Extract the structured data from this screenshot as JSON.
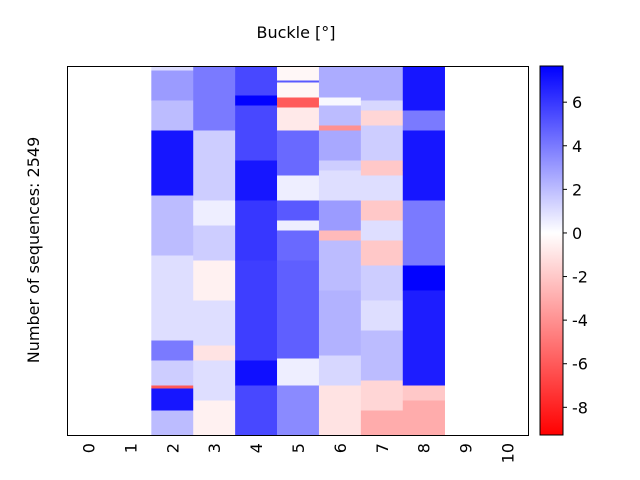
{
  "chart_data": {
    "type": "heatmap",
    "title": "Buckle [°]",
    "ylabel": "Number of sequences: 2549",
    "xlabel": "",
    "x_categories": [
      "0",
      "1",
      "2",
      "3",
      "4",
      "5",
      "6",
      "7",
      "8",
      "9",
      "10"
    ],
    "total_sequences": 2549,
    "colormap": "bwr",
    "colorbar": {
      "range": [
        -9.27,
        7.66
      ],
      "ticks": [
        6,
        4,
        2,
        0,
        -2,
        -4,
        -6,
        -8
      ],
      "tick_labels": [
        "6",
        "4",
        "2",
        "0",
        "-2",
        "-4",
        "-6",
        "-8"
      ],
      "colors": {
        "negative": "#ff0000",
        "zero": "#ffffff",
        "positive": "#0000ff"
      }
    },
    "columns": [
      {
        "x": "0",
        "segments": []
      },
      {
        "x": "1",
        "segments": []
      },
      {
        "x": "2",
        "segments": [
          [
            1,
            4
          ],
          [
            3,
            30
          ],
          [
            2,
            30
          ],
          [
            7,
            65
          ],
          [
            2,
            60
          ],
          [
            1,
            85
          ],
          [
            4,
            20
          ],
          [
            1.5,
            25
          ],
          [
            -6,
            3
          ],
          [
            7,
            22
          ],
          [
            2,
            25
          ]
        ]
      },
      {
        "x": "3",
        "segments": [
          [
            4,
            64
          ],
          [
            1.5,
            70
          ],
          [
            0.5,
            25
          ],
          [
            1.5,
            35
          ],
          [
            -0.5,
            40
          ],
          [
            1,
            45
          ],
          [
            -1,
            15
          ],
          [
            1,
            40
          ],
          [
            -0.5,
            35
          ]
        ]
      },
      {
        "x": "4",
        "segments": [
          [
            5.5,
            29
          ],
          [
            7.6,
            10
          ],
          [
            5.5,
            55
          ],
          [
            7,
            40
          ],
          [
            6,
            60
          ],
          [
            5.8,
            100
          ],
          [
            7.2,
            25
          ],
          [
            5.5,
            50
          ]
        ]
      },
      {
        "x": "5",
        "segments": [
          [
            -0.3,
            14
          ],
          [
            5,
            2
          ],
          [
            -0.3,
            15
          ],
          [
            -6,
            10
          ],
          [
            -0.8,
            23
          ],
          [
            4.5,
            45
          ],
          [
            0.5,
            25
          ],
          [
            5,
            20
          ],
          [
            0.5,
            10
          ],
          [
            4.5,
            30
          ],
          [
            4.8,
            98
          ],
          [
            0.5,
            27
          ],
          [
            3.5,
            50
          ]
        ]
      },
      {
        "x": "6",
        "segments": [
          [
            2.5,
            31
          ],
          [
            0.2,
            8
          ],
          [
            2,
            20
          ],
          [
            -4,
            5
          ],
          [
            2.6,
            30
          ],
          [
            1.5,
            10
          ],
          [
            1,
            30
          ],
          [
            3,
            30
          ],
          [
            -2.5,
            10
          ],
          [
            2,
            50
          ],
          [
            2.3,
            65
          ],
          [
            1.2,
            30
          ],
          [
            -1,
            50
          ]
        ]
      },
      {
        "x": "7",
        "segments": [
          [
            2.5,
            34
          ],
          [
            1.2,
            10
          ],
          [
            -1.5,
            15
          ],
          [
            1.5,
            35
          ],
          [
            -2,
            15
          ],
          [
            1,
            25
          ],
          [
            -2,
            20
          ],
          [
            1,
            20
          ],
          [
            -2,
            25
          ],
          [
            1.5,
            35
          ],
          [
            1,
            30
          ],
          [
            2,
            50
          ],
          [
            -1.5,
            30
          ],
          [
            -3,
            25
          ]
        ]
      },
      {
        "x": "8",
        "segments": [
          [
            7,
            44
          ],
          [
            4,
            20
          ],
          [
            7,
            40
          ],
          [
            7,
            30
          ],
          [
            4,
            65
          ],
          [
            7.6,
            25
          ],
          [
            6.8,
            95
          ],
          [
            -2,
            15
          ],
          [
            -3,
            35
          ]
        ]
      },
      {
        "x": "9",
        "segments": []
      },
      {
        "x": "10",
        "segments": []
      }
    ]
  }
}
